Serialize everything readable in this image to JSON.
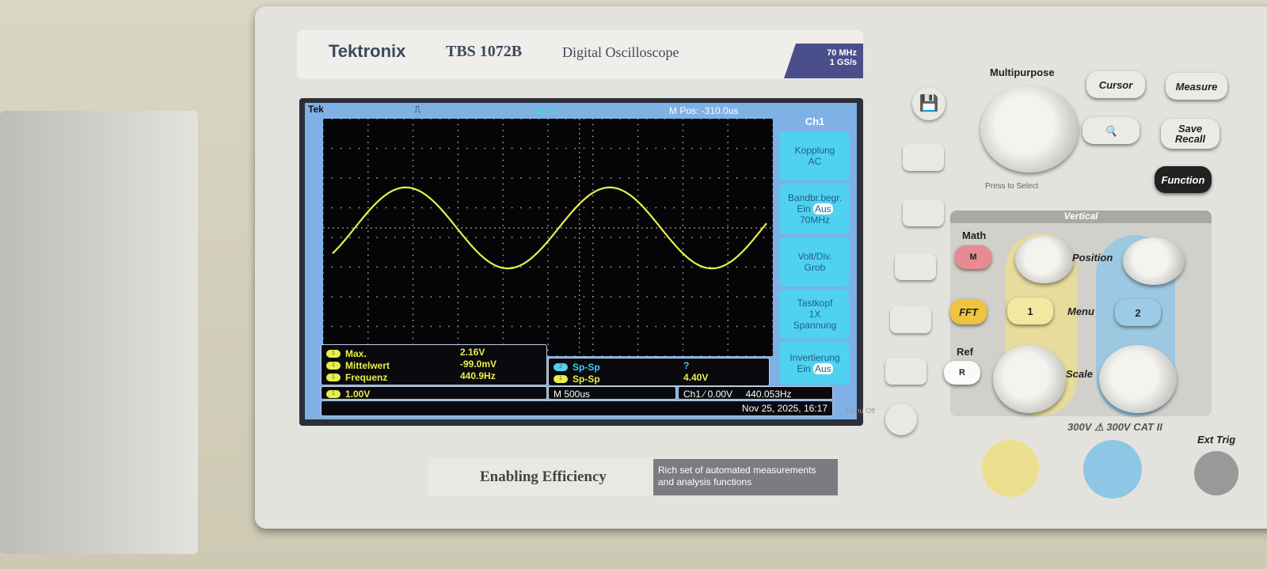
{
  "device": {
    "brand": "Tektronix",
    "model": "TBS 1072B",
    "type": "Digital Oscilloscope",
    "bandwidth": "70 MHz",
    "sample_rate": "1 GS/s",
    "tagline": "Enabling Efficiency",
    "tagline_sub": "Rich set of automated measurements and analysis functions"
  },
  "screen": {
    "header": {
      "logo": "Tek",
      "trigger_status": "Trig'd",
      "m_pos": "M Pos: -310.0us"
    },
    "side_menu": {
      "title": "Ch1",
      "items": [
        {
          "line1": "Kopplung",
          "line2": "AC"
        },
        {
          "line1": "Bandbr.begr.",
          "on": "Ein",
          "off": "Aus",
          "line3": "70MHz"
        },
        {
          "line1": "Volt/Div.",
          "line2": "Grob"
        },
        {
          "line1": "Tastkopf",
          "line2": "1X",
          "line3": "Spannung"
        },
        {
          "line1": "Invertierung",
          "on": "Ein",
          "off": "Aus"
        }
      ]
    },
    "measurements_ch1": [
      {
        "channel": "1",
        "label": "Max.",
        "value": "2.16V"
      },
      {
        "channel": "1",
        "label": "Mittelwert",
        "value": "-99.0mV"
      },
      {
        "channel": "1",
        "label": "Frequenz",
        "value": "440.9Hz"
      }
    ],
    "measurements_b": [
      {
        "channel": "2",
        "label": "Sp-Sp",
        "value": "?"
      },
      {
        "channel": "1",
        "label": "Sp-Sp",
        "value": "4.40V"
      }
    ],
    "status": {
      "ch1_scale": "1.00V",
      "ch1_badge": "1",
      "timebase": "M 500us",
      "trigger": "Ch1 ⁄ 0.00V",
      "trigger_freq": "440.053Hz",
      "datetime": "Nov 25, 2025, 16:17"
    },
    "waveform": {
      "channel": "1",
      "shape": "sine",
      "color": "#e8f04a",
      "divisions_x": 10,
      "divisions_y": 8,
      "frequency_hz": 440.9,
      "peak_to_peak_v": 4.4,
      "volts_per_div": 1.0
    }
  },
  "panel": {
    "multipurpose": "Multipurpose",
    "press_to_select": "Press to Select",
    "cursor": "Cursor",
    "measure": "Measure",
    "save": "Save",
    "recall": "Recall",
    "function": "Function",
    "vertical": "Vertical",
    "math": "Math",
    "math_btn": "M",
    "fft": "FFT",
    "ref": "Ref",
    "ref_btn": "R",
    "position": "Position",
    "menu": "Menu",
    "scale": "Scale",
    "ch1": "1",
    "ch2": "2",
    "rating": "300V ⚠ 300V CAT II",
    "ext_trig": "Ext Trig",
    "menu_off": "Menu Off"
  }
}
